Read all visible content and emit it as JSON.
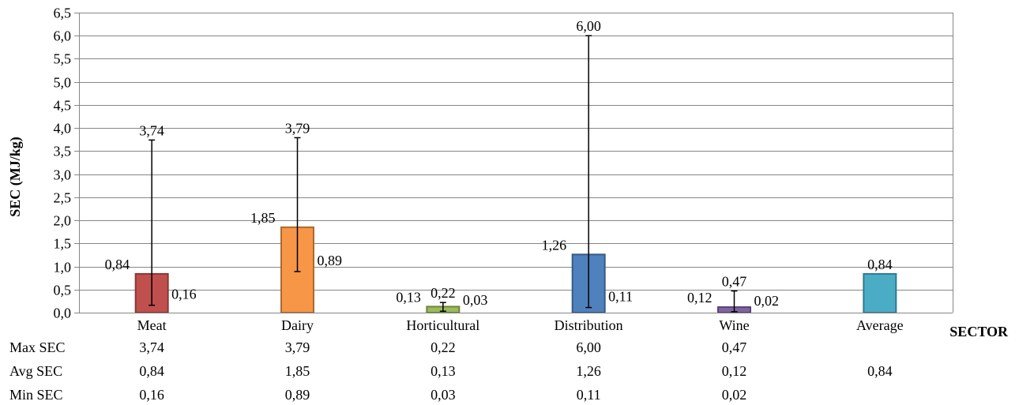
{
  "chart_data": {
    "type": "bar",
    "xlabel": "SECTOR",
    "ylabel": "SEC (MJ/kg)",
    "ylim": [
      0,
      6.5
    ],
    "ytick_step": 0.5,
    "grid": "horizontal",
    "categories": [
      "Meat",
      "Dairy",
      "Horticultural",
      "Distribution",
      "Wine",
      "Average"
    ],
    "values": [
      0.84,
      1.85,
      0.13,
      1.26,
      0.12,
      0.84
    ],
    "value_labels": [
      "0,84",
      "1,85",
      "0,13",
      "1,26",
      "0,12",
      "0,84"
    ],
    "error_max": [
      3.74,
      3.79,
      0.22,
      6.0,
      0.47,
      null
    ],
    "error_max_labels": [
      "3,74",
      "3,79",
      "0,22",
      "6,00",
      "0,47",
      null
    ],
    "error_min": [
      0.16,
      0.89,
      0.03,
      0.11,
      0.02,
      null
    ],
    "error_min_labels": [
      "0,16",
      "0,89",
      "0,03",
      "0,11",
      "0,02",
      null
    ],
    "colors": [
      "#c0504d",
      "#f79646",
      "#9bbb59",
      "#4f81bd",
      "#8064a2",
      "#4bacc6"
    ],
    "table": {
      "rows": [
        {
          "label": "Max SEC",
          "values": [
            "3,74",
            "3,79",
            "0,22",
            "6,00",
            "0,47",
            ""
          ]
        },
        {
          "label": "Avg SEC",
          "values": [
            "0,84",
            "1,85",
            "0,13",
            "1,26",
            "0,12",
            "0,84"
          ]
        },
        {
          "label": "Min SEC",
          "values": [
            "0,16",
            "0,89",
            "0,03",
            "0,11",
            "0,02",
            ""
          ]
        }
      ]
    }
  }
}
